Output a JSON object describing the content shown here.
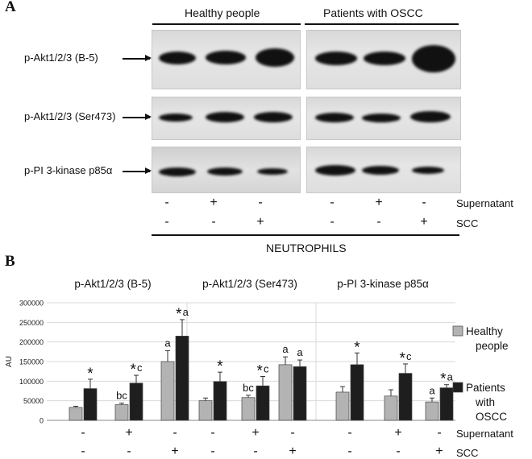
{
  "panel_a": {
    "letter": "A",
    "group_headers": [
      "Healthy people",
      "Patients with OSCC"
    ],
    "row_labels": [
      "p-Akt1/2/3 (B-5)",
      "p-Akt1/2/3 (Ser473)",
      "p-PI 3-kinase p85α"
    ],
    "supernatant_label": "Supernatant",
    "scc_label": "SCC",
    "supernatant_signs": [
      "-",
      "+",
      "-",
      "-",
      "+",
      "-"
    ],
    "scc_signs": [
      "-",
      "-",
      "+",
      "-",
      "-",
      "+"
    ],
    "footer": "NEUTROPHILS"
  },
  "panel_b": {
    "letter": "B",
    "supernatant_label": "Supernatant",
    "scc_label": "SCC",
    "supernatant_signs": [
      "-",
      "+",
      "-"
    ],
    "scc_signs": [
      "-",
      "-",
      "+"
    ]
  },
  "colors": {
    "healthy": "#b3b3b3",
    "patients": "#1e1e1e",
    "grid": "#d9d9d9"
  },
  "chart_data": {
    "type": "bar",
    "ylabel": "AU",
    "ylim": [
      0,
      300000
    ],
    "yticks": [
      0,
      50000,
      100000,
      150000,
      200000,
      250000,
      300000
    ],
    "categories": [
      "-/-",
      "+/-",
      "-/+"
    ],
    "legend": [
      "Healthy people",
      "Patients with OSCC"
    ],
    "legend_position": "right",
    "grid": true,
    "panels": [
      {
        "title": "p-Akt1/2/3 (B-5)",
        "series": [
          {
            "name": "Healthy people",
            "values": [
              33000,
              40000,
              150000
            ],
            "errors": [
              3000,
              4000,
              28000
            ]
          },
          {
            "name": "Patients with OSCC",
            "values": [
              81000,
              95000,
              215000
            ],
            "errors": [
              24000,
              20000,
              42000
            ]
          }
        ],
        "annotations": [
          {
            "series": 1,
            "index": 0,
            "text": "*"
          },
          {
            "series": 0,
            "index": 1,
            "text": "bc"
          },
          {
            "series": 1,
            "index": 1,
            "text": "*c"
          },
          {
            "series": 0,
            "index": 2,
            "text": "a"
          },
          {
            "series": 1,
            "index": 2,
            "text": "*a"
          }
        ]
      },
      {
        "title": "p-Akt1/2/3 (Ser473)",
        "series": [
          {
            "name": "Healthy people",
            "values": [
              50000,
              58000,
              142000
            ],
            "errors": [
              7000,
              6000,
              20000
            ]
          },
          {
            "name": "Patients with OSCC",
            "values": [
              99000,
              88000,
              137000
            ],
            "errors": [
              24000,
              24000,
              17000
            ]
          }
        ],
        "annotations": [
          {
            "series": 1,
            "index": 0,
            "text": "*"
          },
          {
            "series": 0,
            "index": 1,
            "text": "bc"
          },
          {
            "series": 1,
            "index": 1,
            "text": "*c"
          },
          {
            "series": 0,
            "index": 2,
            "text": "a"
          },
          {
            "series": 1,
            "index": 2,
            "text": "a"
          }
        ]
      },
      {
        "title": "p-PI 3-kinase p85α",
        "series": [
          {
            "name": "Healthy people",
            "values": [
              72000,
              62000,
              47000
            ],
            "errors": [
              14000,
              16000,
              10000
            ]
          },
          {
            "name": "Patients with OSCC",
            "values": [
              142000,
              120000,
              83000
            ],
            "errors": [
              30000,
              24000,
              8000
            ]
          }
        ],
        "annotations": [
          {
            "series": 1,
            "index": 0,
            "text": "*"
          },
          {
            "series": 1,
            "index": 1,
            "text": "*c"
          },
          {
            "series": 0,
            "index": 2,
            "text": "a"
          },
          {
            "series": 1,
            "index": 2,
            "text": "*a"
          }
        ]
      }
    ]
  }
}
